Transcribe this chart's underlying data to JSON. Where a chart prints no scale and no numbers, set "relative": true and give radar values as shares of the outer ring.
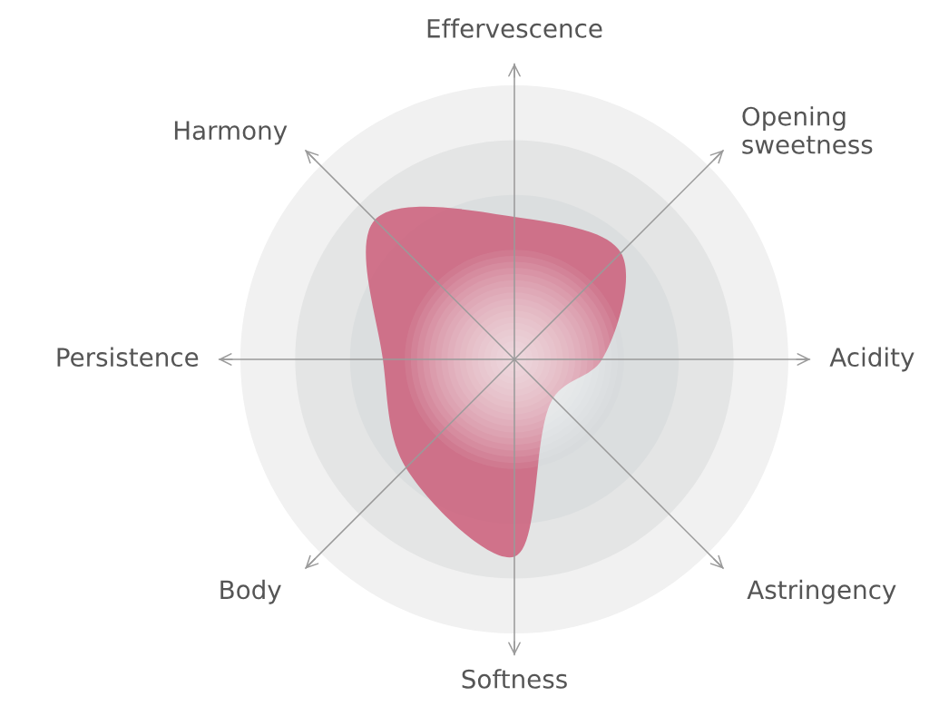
{
  "chart_data": {
    "type": "radar",
    "relative": true,
    "grid": true,
    "categories": [
      "Effervescence",
      "Opening\nsweetness",
      "Acidity",
      "Astringency",
      "Softness",
      "Body",
      "Persistence",
      "Harmony"
    ],
    "series": [
      {
        "color": "#cb5573",
        "values": [
          0.52,
          0.55,
          0.32,
          0.2,
          0.72,
          0.56,
          0.48,
          0.72
        ]
      }
    ]
  }
}
